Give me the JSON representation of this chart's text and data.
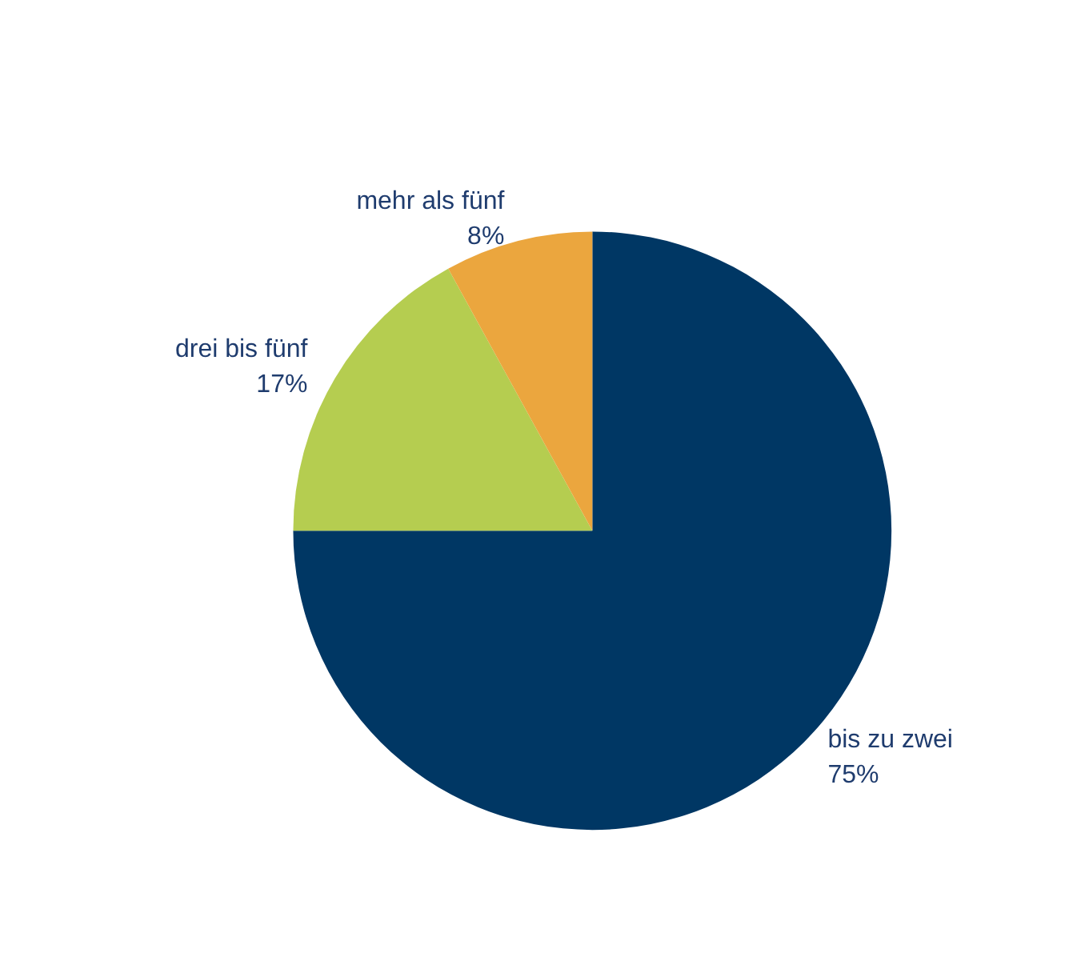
{
  "chart_data": {
    "type": "pie",
    "categories": [
      "bis zu zwei",
      "drei bis fünf",
      "mehr als fünf"
    ],
    "values": [
      75,
      17,
      8
    ],
    "colors": [
      "#003764",
      "#b5cd50",
      "#eba63e"
    ],
    "value_labels": [
      "75%",
      "17%",
      "8%"
    ],
    "legend": false
  }
}
